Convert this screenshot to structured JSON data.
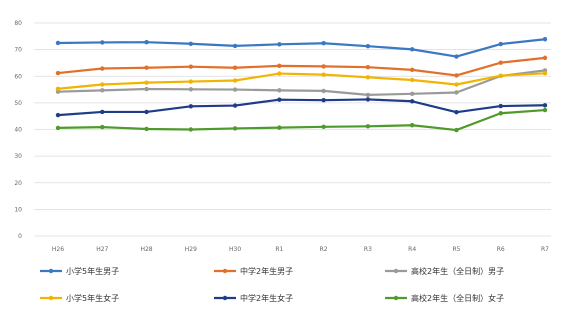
{
  "chart_data": {
    "type": "line",
    "categories": [
      "H26",
      "H27",
      "H28",
      "H29",
      "H30",
      "R1",
      "R2",
      "R3",
      "R4",
      "R5",
      "R6",
      "R7"
    ],
    "ylim": [
      0,
      80
    ],
    "yticks": [
      0,
      10,
      20,
      30,
      40,
      50,
      60,
      70,
      80
    ],
    "grid": true,
    "legend_position": "bottom",
    "series": [
      {
        "name": "小学5年生男子",
        "color": "#3a78c3",
        "values": [
          72.5,
          72.7,
          72.8,
          72.2,
          71.4,
          72.0,
          72.4,
          71.3,
          70.1,
          67.4,
          72.1,
          73.9
        ]
      },
      {
        "name": "中学2年生男子",
        "color": "#e0702a",
        "values": [
          61.2,
          62.9,
          63.2,
          63.6,
          63.2,
          63.9,
          63.7,
          63.4,
          62.4,
          60.3,
          65.1,
          66.9
        ]
      },
      {
        "name": "高校2年生（全日制）男子",
        "color": "#9a9a9a",
        "values": [
          54.2,
          54.7,
          55.2,
          55.1,
          55.0,
          54.7,
          54.5,
          53.0,
          53.4,
          53.9,
          60.1,
          62.2
        ]
      },
      {
        "name": "小学5年生女子",
        "color": "#f2b400",
        "values": [
          55.3,
          56.9,
          57.6,
          58.0,
          58.4,
          61.0,
          60.6,
          59.6,
          58.6,
          56.9,
          60.2,
          61.1
        ]
      },
      {
        "name": "中学2年生女子",
        "color": "#1f3c88",
        "values": [
          45.4,
          46.6,
          46.6,
          48.7,
          49.0,
          51.2,
          51.0,
          51.3,
          50.6,
          46.5,
          48.8,
          49.1
        ]
      },
      {
        "name": "高校2年生（全日制）女子",
        "color": "#4f9a2c",
        "values": [
          40.6,
          40.9,
          40.2,
          40.0,
          40.4,
          40.7,
          41.0,
          41.2,
          41.6,
          39.8,
          46.1,
          47.3
        ]
      }
    ]
  }
}
